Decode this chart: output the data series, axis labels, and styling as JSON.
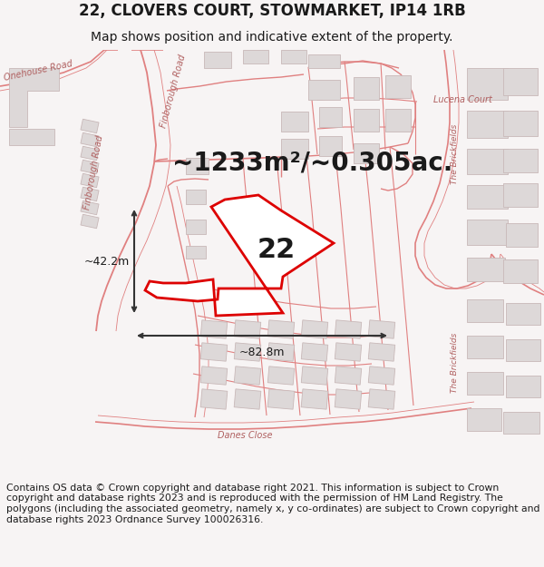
{
  "title_line1": "22, CLOVERS COURT, STOWMARKET, IP14 1RB",
  "title_line2": "Map shows position and indicative extent of the property.",
  "area_text": "~1233m²/~0.305ac.",
  "label_22": "22",
  "dim_width": "~82.8m",
  "dim_height": "~42.2m",
  "footer_text": "Contains OS data © Crown copyright and database right 2021. This information is subject to Crown copyright and database rights 2023 and is reproduced with the permission of HM Land Registry. The polygons (including the associated geometry, namely x, y co-ordinates) are subject to Crown copyright and database rights 2023 Ordnance Survey 100026316.",
  "bg_color": "#f7f4f4",
  "map_bg": "#ffffff",
  "road_color": "#e08080",
  "building_fill": "#ddd8d8",
  "building_edge": "#c8b8b8",
  "highlight_color": "#dd0000",
  "text_color": "#1a1a1a",
  "road_label_color": "#b06060",
  "dim_color": "#333333",
  "title_fontsize": 12,
  "subtitle_fontsize": 10,
  "area_fontsize": 20,
  "label_fontsize": 22,
  "footer_fontsize": 7.8,
  "road_label_fontsize": 7
}
